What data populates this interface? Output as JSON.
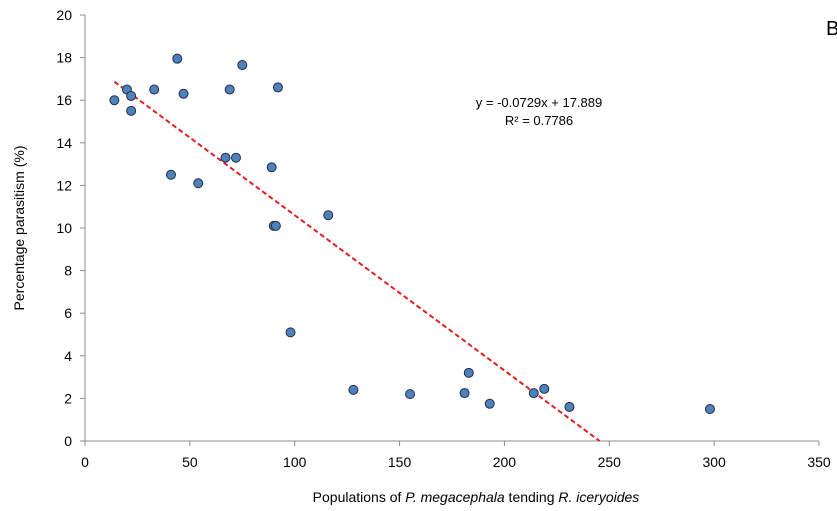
{
  "chart_data": {
    "type": "scatter",
    "panel_label": "B",
    "xlabel_parts": [
      {
        "text": "Populations of ",
        "italic": false
      },
      {
        "text": "P. megacephala",
        "italic": true
      },
      {
        "text": " tending ",
        "italic": false
      },
      {
        "text": "R. iceryoides",
        "italic": true
      }
    ],
    "ylabel": "Percentage parasitism (%)",
    "xlim": [
      0,
      350
    ],
    "ylim": [
      0,
      20
    ],
    "x_ticks": [
      "0",
      "50",
      "100",
      "150",
      "200",
      "250",
      "300",
      "350"
    ],
    "y_ticks": [
      "0",
      "2",
      "4",
      "6",
      "8",
      "10",
      "12",
      "14",
      "16",
      "18",
      "20"
    ],
    "grid": false,
    "point_color": "#4f81bd",
    "trendline_color": "#e02020",
    "equation": "y = -0.0729x + 17.889",
    "r_squared": "R² = 0.7786",
    "trendline": {
      "slope": -0.0729,
      "intercept": 17.889,
      "x_start": 14,
      "x_end": 245.4
    },
    "points": [
      {
        "x": 14,
        "y": 16.0
      },
      {
        "x": 20,
        "y": 16.5
      },
      {
        "x": 22,
        "y": 16.2
      },
      {
        "x": 22,
        "y": 15.5
      },
      {
        "x": 33,
        "y": 16.5
      },
      {
        "x": 41,
        "y": 12.5
      },
      {
        "x": 44,
        "y": 17.95
      },
      {
        "x": 47,
        "y": 16.3
      },
      {
        "x": 54,
        "y": 12.1
      },
      {
        "x": 67,
        "y": 13.3
      },
      {
        "x": 69,
        "y": 16.5
      },
      {
        "x": 72,
        "y": 13.3
      },
      {
        "x": 75,
        "y": 17.65
      },
      {
        "x": 89,
        "y": 12.85
      },
      {
        "x": 90,
        "y": 10.1
      },
      {
        "x": 91,
        "y": 10.1
      },
      {
        "x": 92,
        "y": 16.6
      },
      {
        "x": 98,
        "y": 5.1
      },
      {
        "x": 116,
        "y": 10.6
      },
      {
        "x": 128,
        "y": 2.4
      },
      {
        "x": 155,
        "y": 2.2
      },
      {
        "x": 181,
        "y": 2.25
      },
      {
        "x": 183,
        "y": 3.2
      },
      {
        "x": 193,
        "y": 1.75
      },
      {
        "x": 214,
        "y": 2.25
      },
      {
        "x": 219,
        "y": 2.45
      },
      {
        "x": 231,
        "y": 1.6
      },
      {
        "x": 298,
        "y": 1.5
      }
    ]
  }
}
